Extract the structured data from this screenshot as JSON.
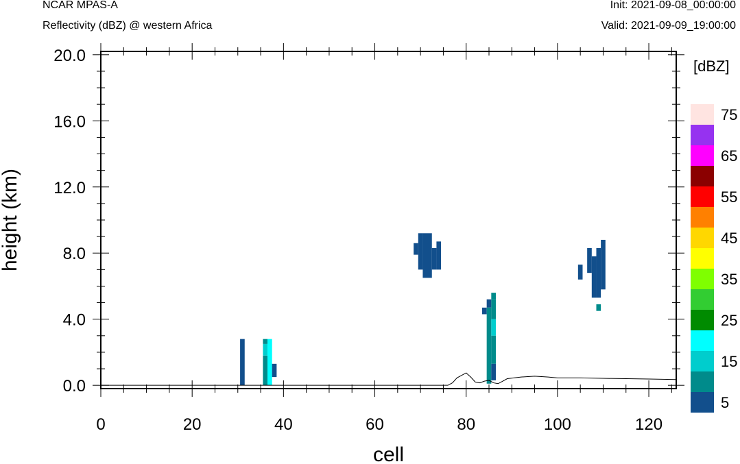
{
  "header": {
    "left_title": "NCAR MPAS-A",
    "left_subtitle": "Reflectivity (dBZ) @ western Africa",
    "right_init": "Init: 2021-09-08_00:00:00",
    "right_valid": "Valid: 2021-09-09_19:00:00"
  },
  "chart_data": {
    "type": "heatmap",
    "title": "Reflectivity (dBZ) @ western Africa",
    "xlabel": "cell",
    "ylabel": "height (km)",
    "xlim": [
      0,
      126
    ],
    "ylim": [
      -0.2,
      20.2
    ],
    "x_ticks": [
      0,
      20,
      40,
      60,
      80,
      100,
      120
    ],
    "x_tick_labels": [
      "0",
      "20",
      "40",
      "60",
      "80",
      "100",
      "120"
    ],
    "y_ticks": [
      0,
      4,
      8,
      12,
      16,
      20
    ],
    "y_tick_labels": [
      "0.0",
      "4.0",
      "8.0",
      "12.0",
      "16.0",
      "20.0"
    ],
    "colorbar": {
      "unit_label": "[dBZ]",
      "levels": [
        5,
        10,
        15,
        20,
        25,
        30,
        35,
        40,
        45,
        50,
        55,
        60,
        65,
        70,
        75
      ],
      "colors": [
        "#124f8c",
        "#008b8b",
        "#00cdcd",
        "#00ffff",
        "#008b00",
        "#32cd32",
        "#7fff00",
        "#ffff00",
        "#ffd700",
        "#ff8000",
        "#ff0000",
        "#8b0000",
        "#ff00ff",
        "#9632f0",
        "#ffe4e1"
      ],
      "tick_labels": [
        "5",
        "15",
        "25",
        "35",
        "45",
        "55",
        "65",
        "75"
      ]
    },
    "cells": [
      {
        "x0": 30.5,
        "x1": 31.5,
        "y0": 0.0,
        "y1": 2.8,
        "dbz": 5
      },
      {
        "x0": 35.5,
        "x1": 36.5,
        "y0": 0.0,
        "y1": 1.8,
        "dbz": 10
      },
      {
        "x0": 35.5,
        "x1": 36.5,
        "y0": 1.8,
        "y1": 2.5,
        "dbz": 15
      },
      {
        "x0": 35.5,
        "x1": 36.5,
        "y0": 2.5,
        "y1": 2.8,
        "dbz": 10
      },
      {
        "x0": 36.5,
        "x1": 37.5,
        "y0": 0.0,
        "y1": 2.8,
        "dbz": 20
      },
      {
        "x0": 37.5,
        "x1": 38.5,
        "y0": 0.5,
        "y1": 1.3,
        "dbz": 5
      },
      {
        "x0": 68.5,
        "x1": 69.5,
        "y0": 7.9,
        "y1": 8.6,
        "dbz": 5
      },
      {
        "x0": 69.5,
        "x1": 70.5,
        "y0": 7.0,
        "y1": 9.2,
        "dbz": 5
      },
      {
        "x0": 70.5,
        "x1": 72.5,
        "y0": 6.5,
        "y1": 9.2,
        "dbz": 5
      },
      {
        "x0": 72.5,
        "x1": 73.5,
        "y0": 7.0,
        "y1": 8.3,
        "dbz": 5
      },
      {
        "x0": 73.5,
        "x1": 74.5,
        "y0": 7.0,
        "y1": 8.7,
        "dbz": 5
      },
      {
        "x0": 83.5,
        "x1": 84.5,
        "y0": 4.3,
        "y1": 4.7,
        "dbz": 5
      },
      {
        "x0": 84.5,
        "x1": 85.5,
        "y0": 4.7,
        "y1": 5.2,
        "dbz": 5
      },
      {
        "x0": 84.5,
        "x1": 85.5,
        "y0": 0.1,
        "y1": 4.7,
        "dbz": 10
      },
      {
        "x0": 85.5,
        "x1": 86.5,
        "y0": 5.2,
        "y1": 5.6,
        "dbz": 10
      },
      {
        "x0": 85.5,
        "x1": 86.5,
        "y0": 4.0,
        "y1": 5.2,
        "dbz": 10
      },
      {
        "x0": 85.5,
        "x1": 86.5,
        "y0": 3.0,
        "y1": 4.0,
        "dbz": 15
      },
      {
        "x0": 85.5,
        "x1": 86.5,
        "y0": 1.3,
        "y1": 3.0,
        "dbz": 10
      },
      {
        "x0": 85.5,
        "x1": 86.5,
        "y0": 0.3,
        "y1": 1.3,
        "dbz": 5
      },
      {
        "x0": 104.5,
        "x1": 105.5,
        "y0": 6.4,
        "y1": 7.3,
        "dbz": 5
      },
      {
        "x0": 106.5,
        "x1": 107.5,
        "y0": 6.8,
        "y1": 8.3,
        "dbz": 5
      },
      {
        "x0": 107.5,
        "x1": 108.5,
        "y0": 5.3,
        "y1": 7.8,
        "dbz": 5
      },
      {
        "x0": 108.5,
        "x1": 109.5,
        "y0": 5.3,
        "y1": 8.3,
        "dbz": 5
      },
      {
        "x0": 109.5,
        "x1": 110.5,
        "y0": 5.8,
        "y1": 8.8,
        "dbz": 5
      },
      {
        "x0": 108.5,
        "x1": 109.5,
        "y0": 4.5,
        "y1": 4.9,
        "dbz": 10
      }
    ],
    "terrain": {
      "x": [
        0,
        76,
        77,
        78,
        79,
        80,
        81,
        82,
        83,
        84,
        85,
        86,
        87,
        88,
        89,
        92,
        95,
        98,
        100,
        105,
        110,
        115,
        120,
        126
      ],
      "y": [
        0.0,
        0.0,
        0.15,
        0.45,
        0.6,
        0.75,
        0.5,
        0.2,
        0.15,
        0.25,
        0.3,
        0.15,
        0.1,
        0.25,
        0.4,
        0.5,
        0.55,
        0.5,
        0.45,
        0.45,
        0.42,
        0.4,
        0.38,
        0.35
      ]
    }
  }
}
